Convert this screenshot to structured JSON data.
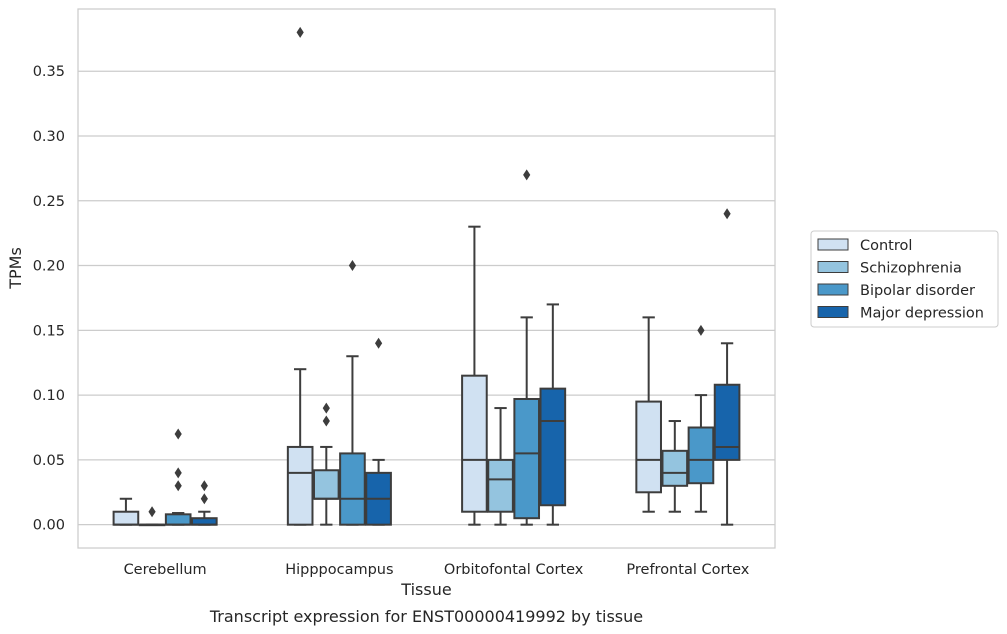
{
  "caption": "Transcript expression for ENST00000419992 by tissue",
  "chart_data": {
    "type": "box",
    "title": "",
    "xlabel": "Tissue",
    "ylabel": "TPMs",
    "ylim": [
      -0.018,
      0.398
    ],
    "yticks": [
      "0.00",
      "0.05",
      "0.10",
      "0.15",
      "0.20",
      "0.25",
      "0.30",
      "0.35"
    ],
    "ytick_values": [
      0,
      0.05,
      0.1,
      0.15,
      0.2,
      0.25,
      0.3,
      0.35
    ],
    "grid": "horizontal",
    "legend_position": "right",
    "categories": [
      "Cerebellum",
      "Hipppocampus",
      "Orbitofontal Cortex",
      "Prefrontal Cortex"
    ],
    "series": [
      {
        "name": "Control",
        "color": "#d0e1f2",
        "boxes": [
          {
            "q1": 0,
            "median": 0,
            "q3": 0.01,
            "whisker_low": 0,
            "whisker_high": 0.02,
            "outliers": []
          },
          {
            "q1": 0,
            "median": 0.04,
            "q3": 0.06,
            "whisker_low": 0,
            "whisker_high": 0.12,
            "outliers": [
              0.38
            ]
          },
          {
            "q1": 0.01,
            "median": 0.05,
            "q3": 0.115,
            "whisker_low": 0,
            "whisker_high": 0.23,
            "outliers": []
          },
          {
            "q1": 0.025,
            "median": 0.05,
            "q3": 0.095,
            "whisker_low": 0.01,
            "whisker_high": 0.16,
            "outliers": []
          }
        ]
      },
      {
        "name": "Schizophrenia",
        "color": "#94c4df",
        "boxes": [
          {
            "q1": 0,
            "median": 0,
            "q3": 0,
            "whisker_low": 0,
            "whisker_high": 0,
            "outliers": [
              0.01
            ]
          },
          {
            "q1": 0.02,
            "median": 0.02,
            "q3": 0.042,
            "whisker_low": 0,
            "whisker_high": 0.06,
            "outliers": [
              0.08,
              0.09
            ]
          },
          {
            "q1": 0.01,
            "median": 0.035,
            "q3": 0.05,
            "whisker_low": 0,
            "whisker_high": 0.09,
            "outliers": []
          },
          {
            "q1": 0.03,
            "median": 0.04,
            "q3": 0.057,
            "whisker_low": 0.01,
            "whisker_high": 0.08,
            "outliers": []
          }
        ]
      },
      {
        "name": "Bipolar disorder",
        "color": "#4a98c9",
        "boxes": [
          {
            "q1": 0,
            "median": 0,
            "q3": 0.008,
            "whisker_low": 0,
            "whisker_high": 0.009,
            "outliers": [
              0.03,
              0.04,
              0.07
            ]
          },
          {
            "q1": 0,
            "median": 0.02,
            "q3": 0.055,
            "whisker_low": 0,
            "whisker_high": 0.13,
            "outliers": [
              0.2
            ]
          },
          {
            "q1": 0.005,
            "median": 0.055,
            "q3": 0.097,
            "whisker_low": 0,
            "whisker_high": 0.16,
            "outliers": [
              0.27
            ]
          },
          {
            "q1": 0.032,
            "median": 0.05,
            "q3": 0.075,
            "whisker_low": 0.01,
            "whisker_high": 0.1,
            "outliers": [
              0.15
            ]
          }
        ]
      },
      {
        "name": "Major depression",
        "color": "#1764ab",
        "boxes": [
          {
            "q1": 0,
            "median": 0,
            "q3": 0.005,
            "whisker_low": 0,
            "whisker_high": 0.01,
            "outliers": [
              0.02,
              0.03
            ]
          },
          {
            "q1": 0,
            "median": 0.02,
            "q3": 0.04,
            "whisker_low": 0,
            "whisker_high": 0.05,
            "outliers": [
              0.14
            ]
          },
          {
            "q1": 0.015,
            "median": 0.08,
            "q3": 0.105,
            "whisker_low": 0,
            "whisker_high": 0.17,
            "outliers": []
          },
          {
            "q1": 0.05,
            "median": 0.06,
            "q3": 0.108,
            "whisker_low": 0,
            "whisker_high": 0.14,
            "outliers": [
              0.24
            ]
          }
        ]
      }
    ]
  }
}
